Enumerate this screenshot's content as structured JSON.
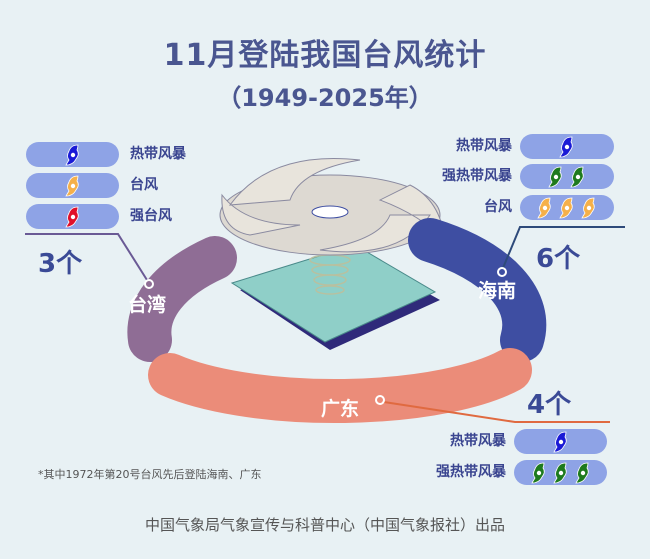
{
  "title": "11月登陆我国台风统计",
  "subtitle": "（1949-2025年）",
  "colors": {
    "tropical_storm": "#1a1ad6",
    "severe_tropical_storm": "#1e7a1e",
    "typhoon": "#f5b04a",
    "severe_typhoon": "#e0102a",
    "taiwan": "#8f6d95",
    "hainan": "#3e4ea2",
    "guangdong": "#eb8c79"
  },
  "regions": {
    "taiwan": {
      "name": "台湾",
      "count": "3个",
      "categories": [
        {
          "label": "热带风暴",
          "kind": "tropical_storm",
          "n": 1
        },
        {
          "label": "台风",
          "kind": "typhoon",
          "n": 1
        },
        {
          "label": "强台风",
          "kind": "severe_typhoon",
          "n": 1
        }
      ]
    },
    "hainan": {
      "name": "海南",
      "count": "6个",
      "categories": [
        {
          "label": "热带风暴",
          "kind": "tropical_storm",
          "n": 1
        },
        {
          "label": "强热带风暴",
          "kind": "severe_tropical_storm",
          "n": 2
        },
        {
          "label": "台风",
          "kind": "typhoon",
          "n": 3
        }
      ]
    },
    "guangdong": {
      "name": "广东",
      "count": "4个",
      "categories": [
        {
          "label": "热带风暴",
          "kind": "tropical_storm",
          "n": 1
        },
        {
          "label": "强热带风暴",
          "kind": "severe_tropical_storm",
          "n": 3
        }
      ]
    }
  },
  "note": "*其中1972年第20号台风先后登陆海南、广东",
  "credit": "中国气象局气象宣传与科普中心（中国气象报社）出品"
}
